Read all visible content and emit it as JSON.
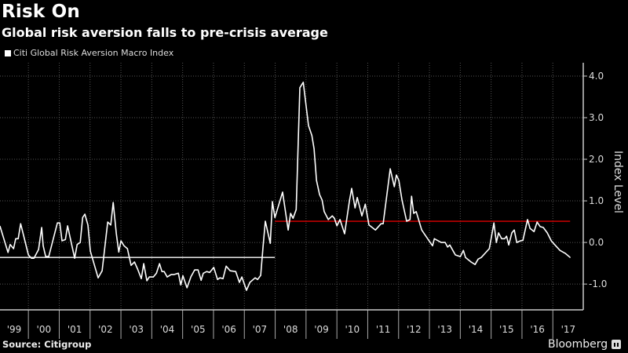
{
  "header": {
    "title": "Risk On",
    "subtitle": "Global risk aversion falls to pre-crisis average"
  },
  "footer": {
    "source": "Source: Citigroup",
    "brand": "Bloomberg"
  },
  "chart_data": {
    "type": "line",
    "title": "Risk On",
    "subtitle": "Global risk aversion falls to pre-crisis average",
    "ylabel": "Index Level",
    "xlabel": "",
    "legend": {
      "placement": "top-left",
      "entries": [
        "Citi Global Risk Aversion Macro Index"
      ]
    },
    "grid": true,
    "y_axis_side": "right",
    "ylim": [
      -1.62,
      4.32
    ],
    "xlim": [
      1999.08,
      2017.7
    ],
    "y_ticks": [
      {
        "value": 4.0,
        "label": "4.0"
      },
      {
        "value": 3.0,
        "label": "3.0"
      },
      {
        "value": 2.0,
        "label": "2.0"
      },
      {
        "value": 1.0,
        "label": "1.0"
      },
      {
        "value": 0.0,
        "label": "0.0"
      },
      {
        "value": -1.0,
        "label": "-1.0"
      }
    ],
    "x_ticks": [
      {
        "year": 1999,
        "label": "'99"
      },
      {
        "year": 2000,
        "label": "'00"
      },
      {
        "year": 2001,
        "label": "'01"
      },
      {
        "year": 2002,
        "label": "'02"
      },
      {
        "year": 2003,
        "label": "'03"
      },
      {
        "year": 2004,
        "label": "'04"
      },
      {
        "year": 2005,
        "label": "'05"
      },
      {
        "year": 2006,
        "label": "'06"
      },
      {
        "year": 2007,
        "label": "'07"
      },
      {
        "year": 2008,
        "label": "'08"
      },
      {
        "year": 2009,
        "label": "'09"
      },
      {
        "year": 2010,
        "label": "'10"
      },
      {
        "year": 2011,
        "label": "'11"
      },
      {
        "year": 2012,
        "label": "'12"
      },
      {
        "year": 2013,
        "label": "'13"
      },
      {
        "year": 2014,
        "label": "'14"
      },
      {
        "year": 2015,
        "label": "'15"
      },
      {
        "year": 2016,
        "label": "'16"
      },
      {
        "year": 2017,
        "label": "'17"
      }
    ],
    "series": [
      {
        "name": "Citi Global Risk Aversion Macro Index",
        "color": "#ffffff",
        "x": [
          1999.08,
          1999.34,
          1999.41,
          1999.52,
          1999.59,
          1999.67,
          1999.75,
          2000.0,
          2000.1,
          2000.18,
          2000.33,
          2000.43,
          2000.48,
          2000.56,
          2000.66,
          2000.94,
          2001.02,
          2001.09,
          2001.2,
          2001.27,
          2001.5,
          2001.58,
          2001.68,
          2001.76,
          2001.83,
          2001.93,
          2002.01,
          2002.26,
          2002.39,
          2002.57,
          2002.67,
          2002.75,
          2002.85,
          2002.93,
          2003.0,
          2003.1,
          2003.21,
          2003.33,
          2003.44,
          2003.54,
          2003.66,
          2003.74,
          2003.84,
          2003.92,
          2004.05,
          2004.15,
          2004.25,
          2004.33,
          2004.4,
          2004.5,
          2004.63,
          2004.73,
          2004.86,
          2004.94,
          2005.01,
          2005.14,
          2005.27,
          2005.39,
          2005.5,
          2005.6,
          2005.67,
          2005.78,
          2005.88,
          2006.01,
          2006.13,
          2006.21,
          2006.31,
          2006.41,
          2006.54,
          2006.72,
          2006.84,
          2006.92,
          2007.07,
          2007.18,
          2007.35,
          2007.43,
          2007.53,
          2007.61,
          2007.68,
          2007.84,
          2007.91,
          2007.99,
          2008.24,
          2008.42,
          2008.5,
          2008.58,
          2008.68,
          2008.8,
          2008.91,
          2009.08,
          2009.19,
          2009.26,
          2009.34,
          2009.44,
          2009.52,
          2009.59,
          2009.72,
          2009.85,
          2009.92,
          2010.0,
          2010.1,
          2010.25,
          2010.41,
          2010.48,
          2010.59,
          2010.66,
          2010.81,
          2010.92,
          2011.04,
          2011.25,
          2011.43,
          2011.5,
          2011.73,
          2011.86,
          2011.93,
          2012.01,
          2012.11,
          2012.26,
          2012.37,
          2012.42,
          2012.49,
          2012.57,
          2012.75,
          2012.95,
          2013.1,
          2013.16,
          2013.38,
          2013.51,
          2013.59,
          2013.66,
          2013.84,
          2014.0,
          2014.1,
          2014.17,
          2014.35,
          2014.48,
          2014.58,
          2014.68,
          2014.94,
          2015.01,
          2015.09,
          2015.17,
          2015.24,
          2015.34,
          2015.44,
          2015.5,
          2015.57,
          2015.67,
          2015.75,
          2015.83,
          2015.95,
          2016.03,
          2016.18,
          2016.26,
          2016.39,
          2016.49,
          2016.59,
          2016.69,
          2016.82,
          2016.95,
          2017.07,
          2017.23,
          2017.4,
          2017.56
        ],
        "values": [
          0.39,
          -0.24,
          -0.05,
          -0.15,
          0.09,
          0.09,
          0.45,
          -0.3,
          -0.38,
          -0.38,
          -0.17,
          0.36,
          -0.08,
          -0.34,
          -0.34,
          0.47,
          0.47,
          0.04,
          0.07,
          0.4,
          -0.38,
          -0.05,
          0.0,
          0.6,
          0.68,
          0.42,
          -0.21,
          -0.85,
          -0.68,
          0.49,
          0.42,
          0.96,
          0.21,
          -0.23,
          0.04,
          -0.08,
          -0.15,
          -0.55,
          -0.47,
          -0.64,
          -0.87,
          -0.51,
          -0.92,
          -0.83,
          -0.83,
          -0.74,
          -0.51,
          -0.7,
          -0.7,
          -0.83,
          -0.77,
          -0.77,
          -0.74,
          -1.02,
          -0.8,
          -1.09,
          -0.82,
          -0.66,
          -0.66,
          -0.91,
          -0.74,
          -0.7,
          -0.72,
          -0.6,
          -0.89,
          -0.85,
          -0.87,
          -0.57,
          -0.68,
          -0.7,
          -0.96,
          -0.83,
          -1.15,
          -0.96,
          -0.85,
          -0.89,
          -0.79,
          -0.08,
          0.51,
          -0.02,
          0.98,
          0.6,
          1.21,
          0.3,
          0.7,
          0.58,
          0.79,
          3.72,
          3.85,
          2.81,
          2.57,
          2.25,
          1.49,
          1.15,
          1.02,
          0.74,
          0.55,
          0.64,
          0.58,
          0.4,
          0.55,
          0.21,
          1.02,
          1.3,
          0.83,
          1.08,
          0.64,
          0.92,
          0.42,
          0.3,
          0.45,
          0.45,
          1.77,
          1.34,
          1.62,
          1.49,
          1.02,
          0.51,
          0.55,
          1.11,
          0.7,
          0.74,
          0.3,
          0.08,
          -0.08,
          0.09,
          0.0,
          0.0,
          -0.11,
          -0.06,
          -0.3,
          -0.34,
          -0.19,
          -0.36,
          -0.47,
          -0.53,
          -0.4,
          -0.36,
          -0.15,
          0.13,
          0.47,
          0.0,
          0.23,
          0.09,
          0.09,
          0.15,
          -0.06,
          0.23,
          0.3,
          0.0,
          0.04,
          0.05,
          0.55,
          0.34,
          0.26,
          0.49,
          0.38,
          0.36,
          0.23,
          0.04,
          -0.06,
          -0.19,
          -0.26,
          -0.36
        ]
      }
    ],
    "reference_lines": [
      {
        "value": -0.36,
        "x_range": [
          1999.08,
          2007.99
        ],
        "color": "#ffffff"
      },
      {
        "value": 0.51,
        "x_range": [
          2007.99,
          2017.56
        ],
        "color": "#e00000"
      }
    ]
  }
}
